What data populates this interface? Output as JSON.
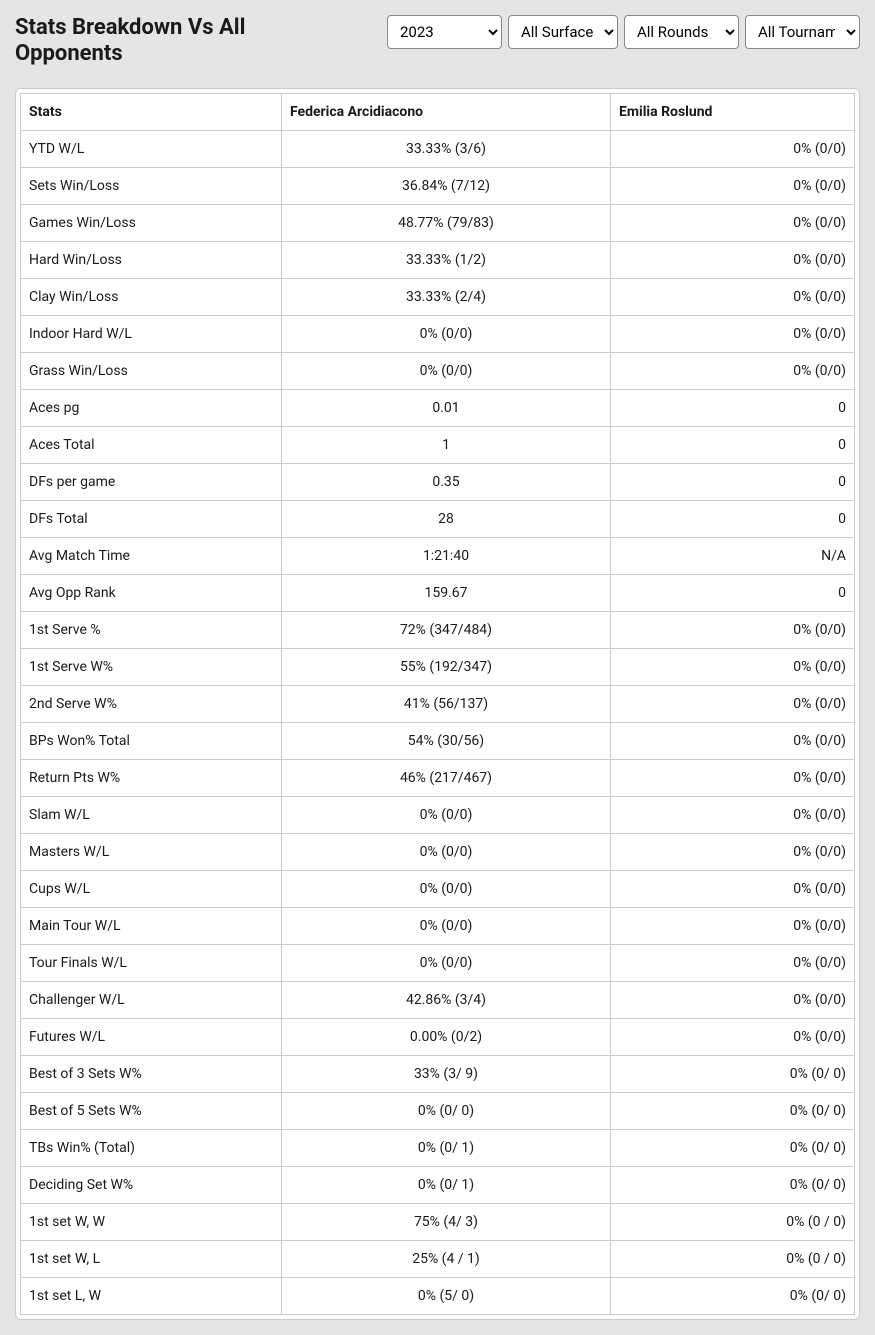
{
  "header": {
    "title": "Stats Breakdown Vs All Opponents"
  },
  "filters": {
    "year": {
      "selected": "2023",
      "options": [
        "2023"
      ]
    },
    "surface": {
      "selected": "All Surfaces",
      "options": [
        "All Surfaces"
      ]
    },
    "rounds": {
      "selected": "All Rounds",
      "options": [
        "All Rounds"
      ]
    },
    "tournament": {
      "selected": "All Tournaments",
      "options": [
        "All Tournaments"
      ]
    }
  },
  "table": {
    "columns": [
      "Stats",
      "Federica Arcidiacono",
      "Emilia Roslund"
    ],
    "rows": [
      [
        "YTD W/L",
        "33.33% (3/6)",
        "0% (0/0)"
      ],
      [
        "Sets Win/Loss",
        "36.84% (7/12)",
        "0% (0/0)"
      ],
      [
        "Games Win/Loss",
        "48.77% (79/83)",
        "0% (0/0)"
      ],
      [
        "Hard Win/Loss",
        "33.33% (1/2)",
        "0% (0/0)"
      ],
      [
        "Clay Win/Loss",
        "33.33% (2/4)",
        "0% (0/0)"
      ],
      [
        "Indoor Hard W/L",
        "0% (0/0)",
        "0% (0/0)"
      ],
      [
        "Grass Win/Loss",
        "0% (0/0)",
        "0% (0/0)"
      ],
      [
        "Aces pg",
        "0.01",
        "0"
      ],
      [
        "Aces Total",
        "1",
        "0"
      ],
      [
        "DFs per game",
        "0.35",
        "0"
      ],
      [
        "DFs Total",
        "28",
        "0"
      ],
      [
        "Avg Match Time",
        "1:21:40",
        "N/A"
      ],
      [
        "Avg Opp Rank",
        "159.67",
        "0"
      ],
      [
        "1st Serve %",
        "72% (347/484)",
        "0% (0/0)"
      ],
      [
        "1st Serve W%",
        "55% (192/347)",
        "0% (0/0)"
      ],
      [
        "2nd Serve W%",
        "41% (56/137)",
        "0% (0/0)"
      ],
      [
        "BPs Won% Total",
        "54% (30/56)",
        "0% (0/0)"
      ],
      [
        "Return Pts W%",
        "46% (217/467)",
        "0% (0/0)"
      ],
      [
        "Slam W/L",
        "0% (0/0)",
        "0% (0/0)"
      ],
      [
        "Masters W/L",
        "0% (0/0)",
        "0% (0/0)"
      ],
      [
        "Cups W/L",
        "0% (0/0)",
        "0% (0/0)"
      ],
      [
        "Main Tour W/L",
        "0% (0/0)",
        "0% (0/0)"
      ],
      [
        "Tour Finals W/L",
        "0% (0/0)",
        "0% (0/0)"
      ],
      [
        "Challenger W/L",
        "42.86% (3/4)",
        "0% (0/0)"
      ],
      [
        "Futures W/L",
        "0.00% (0/2)",
        "0% (0/0)"
      ],
      [
        "Best of 3 Sets W%",
        "33% (3/ 9)",
        "0% (0/ 0)"
      ],
      [
        "Best of 5 Sets W%",
        "0% (0/ 0)",
        "0% (0/ 0)"
      ],
      [
        "TBs Win% (Total)",
        "0% (0/ 1)",
        "0% (0/ 0)"
      ],
      [
        "Deciding Set W%",
        "0% (0/ 1)",
        "0% (0/ 0)"
      ],
      [
        "1st set W, W",
        "75% (4/ 3)",
        "0% (0 / 0)"
      ],
      [
        "1st set W, L",
        "25% (4 / 1)",
        "0% (0 / 0)"
      ],
      [
        "1st set L, W",
        "0% (5/ 0)",
        "0% (0/ 0)"
      ]
    ]
  }
}
